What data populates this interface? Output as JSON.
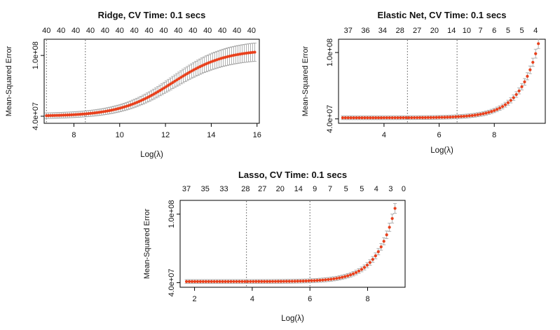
{
  "chart_data": [
    {
      "type": "line",
      "title": "Ridge,  CV Time:  0.1 secs",
      "xlabel": "Log(λ)",
      "ylabel": "Mean-Squared Error",
      "xlim": [
        6.7,
        16.1
      ],
      "ylim": [
        33000000,
        116000000
      ],
      "xticks": [
        8,
        10,
        12,
        14,
        16
      ],
      "yticks": [
        {
          "value": 40000000,
          "label": "4.0e+07"
        },
        {
          "value": 100000000,
          "label": "1.0e+08"
        }
      ],
      "top_axis": {
        "positions": [
          6.8,
          7.44,
          8.08,
          8.72,
          9.36,
          10.0,
          10.64,
          11.28,
          11.92,
          12.56,
          13.2,
          13.84,
          14.48,
          15.12,
          15.76
        ],
        "labels": [
          "40",
          "40",
          "40",
          "40",
          "40",
          "40",
          "40",
          "40",
          "40",
          "40",
          "40",
          "40",
          "40",
          "40",
          "40"
        ]
      },
      "vlines": [
        6.8,
        8.5
      ],
      "curve": {
        "kind": "logistic",
        "xmin": 6.8,
        "xmax": 15.9,
        "n": 100,
        "low": 40000000,
        "high": 106000000,
        "mid": 12.3,
        "scale": 1.15,
        "err_base": 2000000,
        "err_slope": 0.1
      },
      "series": [
        {
          "x": [
            7,
            8,
            9,
            10,
            11,
            12,
            13,
            14,
            15,
            15.9
          ],
          "values": [
            40400000,
            41500000,
            44500000,
            51000000,
            61500000,
            74000000,
            87000000,
            96500000,
            102000000,
            104500000
          ]
        }
      ]
    },
    {
      "type": "line",
      "title": "Elastic Net,  CV Time:  0.1 secs",
      "xlabel": "Log(λ)",
      "ylabel": "Mean-Squared Error",
      "xlim": [
        2.35,
        9.85
      ],
      "ylim": [
        36000000,
        112000000
      ],
      "xticks": [
        4,
        6,
        8
      ],
      "yticks": [
        {
          "value": 40000000,
          "label": "4.0e+07"
        },
        {
          "value": 100000000,
          "label": "1.0e+08"
        }
      ],
      "top_axis": {
        "positions": [
          2.7,
          3.33,
          3.95,
          4.58,
          5.2,
          5.83,
          6.45,
          7.0,
          7.5,
          8.0,
          8.5,
          9.0,
          9.5
        ],
        "labels": [
          "37",
          "36",
          "34",
          "28",
          "27",
          "20",
          "14",
          "10",
          "7",
          "6",
          "5",
          "5",
          "4"
        ]
      },
      "vlines": [
        4.85,
        6.65
      ],
      "curve": {
        "kind": "exponential",
        "xmin": 2.5,
        "xmax": 9.6,
        "n": 72,
        "base": 41000000,
        "amp": 67000000,
        "x1": 9.6,
        "rate": 1.45,
        "err_base": 1500000,
        "err_slope": 0.04
      },
      "series": [
        {
          "x": [
            2.5,
            4,
            5,
            6,
            7,
            8,
            8.5,
            9,
            9.3,
            9.6
          ],
          "values": [
            41000000,
            41100000,
            41300000,
            42100000,
            43600000,
            49000000,
            56000000,
            69000000,
            82000000,
            108000000
          ]
        }
      ]
    },
    {
      "type": "line",
      "title": "Lasso,  CV Time:  0.1 secs",
      "xlabel": "Log(λ)",
      "ylabel": "Mean-Squared Error",
      "xlim": [
        1.5,
        9.3
      ],
      "ylim": [
        36000000,
        112000000
      ],
      "xticks": [
        2,
        4,
        6,
        8
      ],
      "yticks": [
        {
          "value": 40000000,
          "label": "4.0e+07"
        },
        {
          "value": 100000000,
          "label": "1.0e+08"
        }
      ],
      "top_axis": {
        "positions": [
          1.72,
          2.37,
          3.02,
          3.77,
          4.35,
          4.97,
          5.6,
          6.17,
          6.7,
          7.25,
          7.8,
          8.3,
          8.8,
          9.25
        ],
        "labels": [
          "37",
          "35",
          "33",
          "28",
          "27",
          "20",
          "14",
          "9",
          "7",
          "5",
          "5",
          "4",
          "3",
          "0"
        ]
      },
      "vlines": [
        3.8,
        6.0
      ],
      "curve": {
        "kind": "exponential",
        "xmin": 1.72,
        "xmax": 8.95,
        "n": 76,
        "base": 41000000,
        "amp": 64000000,
        "x1": 8.95,
        "rate": 1.55,
        "err_base": 1500000,
        "err_slope": 0.04
      },
      "series": [
        {
          "x": [
            1.72,
            3,
            4,
            5,
            6,
            7,
            7.5,
            8,
            8.5,
            8.95
          ],
          "values": [
            41000000,
            41000000,
            41100000,
            41300000,
            41900000,
            43600000,
            46000000,
            51000000,
            64000000,
            105000000
          ]
        }
      ]
    }
  ],
  "colors": {
    "points": "#e8401c",
    "errorbars": "#a8a8a8",
    "axis": "#000000",
    "vline": "#555555"
  }
}
